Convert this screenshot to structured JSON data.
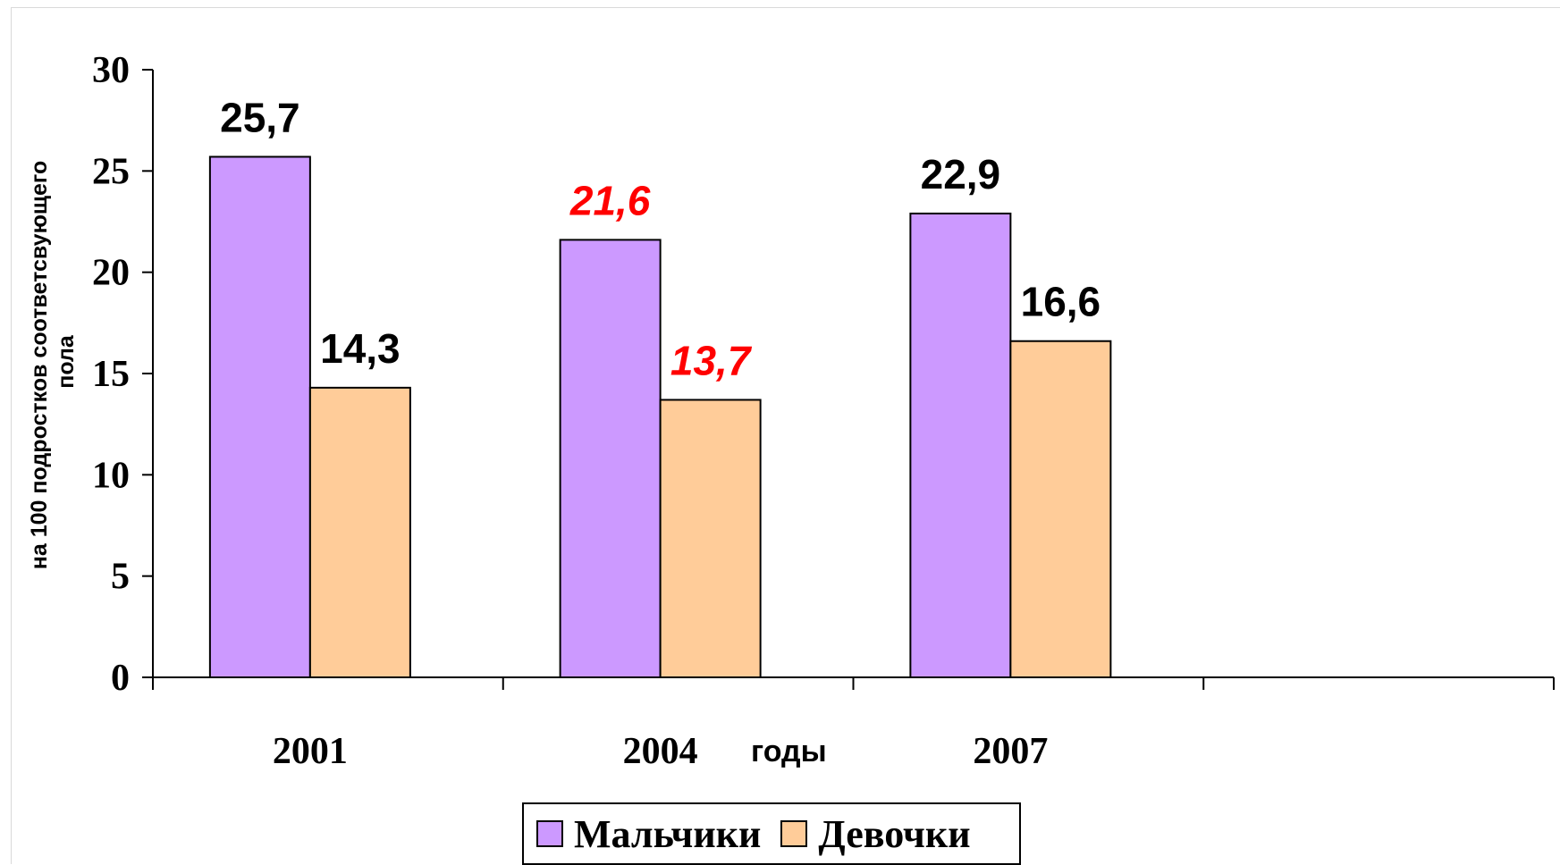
{
  "chart_data": {
    "type": "bar",
    "categories": [
      "2001",
      "2004",
      "2007",
      ""
    ],
    "series": [
      {
        "name": "Мальчики",
        "color": "#cc99ff",
        "values": [
          25.7,
          21.6,
          22.9,
          null
        ],
        "labels": [
          "25,7",
          "21,6",
          "22,9",
          ""
        ],
        "label_colors": [
          "#000000",
          "#ff0000",
          "#000000",
          ""
        ]
      },
      {
        "name": "Девочки",
        "color": "#ffcc99",
        "values": [
          14.3,
          13.7,
          16.6,
          null
        ],
        "labels": [
          "14,3",
          "13,7",
          "16,6",
          ""
        ],
        "label_colors": [
          "#000000",
          "#ff0000",
          "#000000",
          ""
        ]
      }
    ],
    "ylabel": "на 100 подростков соответсвующего пола",
    "xlabel": "годы",
    "ylim": [
      0,
      30
    ],
    "yticks": [
      "0",
      "5",
      "10",
      "15",
      "20",
      "25",
      "30"
    ],
    "grid": false,
    "legend": "bottom"
  }
}
